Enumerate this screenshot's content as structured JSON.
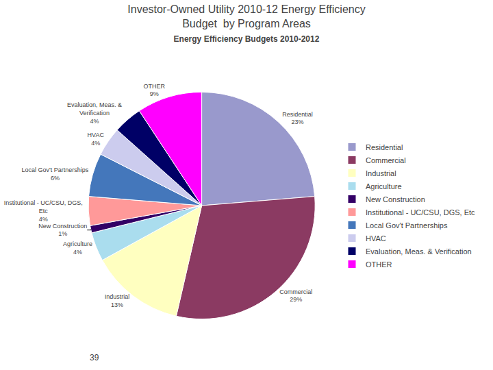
{
  "chart_data": {
    "type": "pie",
    "title": "Investor-Owned Utility 2010-12 Energy Efficiency\nBudget  by Program Areas",
    "subtitle": "Energy Efficiency Budgets 2010-2012",
    "categories": [
      "Residential",
      "Commercial",
      "Industrial",
      "Agriculture",
      "New Construction",
      "Institutional - UC/CSU, DGS, Etc",
      "Local Gov't Partnerships",
      "HVAC",
      "Evaluation, Meas. & Verification",
      "OTHER"
    ],
    "values": [
      23,
      29,
      13,
      4,
      1,
      4,
      6,
      4,
      4,
      9
    ],
    "value_labels": [
      "Residential\n23%",
      "Commercial\n29%",
      "Industrial\n13%",
      "Agriculture\n4%",
      "New Construction\n1%",
      "Institutional - UC/CSU, DGS,\nEtc\n4%",
      "Local Gov't Partnerships\n6%",
      "HVAC\n4%",
      "Evaluation, Meas. &\nVerification\n4%",
      "OTHER\n9%"
    ],
    "colors": [
      "#9999CC",
      "#8B3A62",
      "#FFFFC0",
      "#AADDEE",
      "#330066",
      "#FF9999",
      "#4477BB",
      "#CCCCEE",
      "#000066",
      "#FF00FF"
    ],
    "legend": "right",
    "annotations": [
      "39"
    ]
  }
}
